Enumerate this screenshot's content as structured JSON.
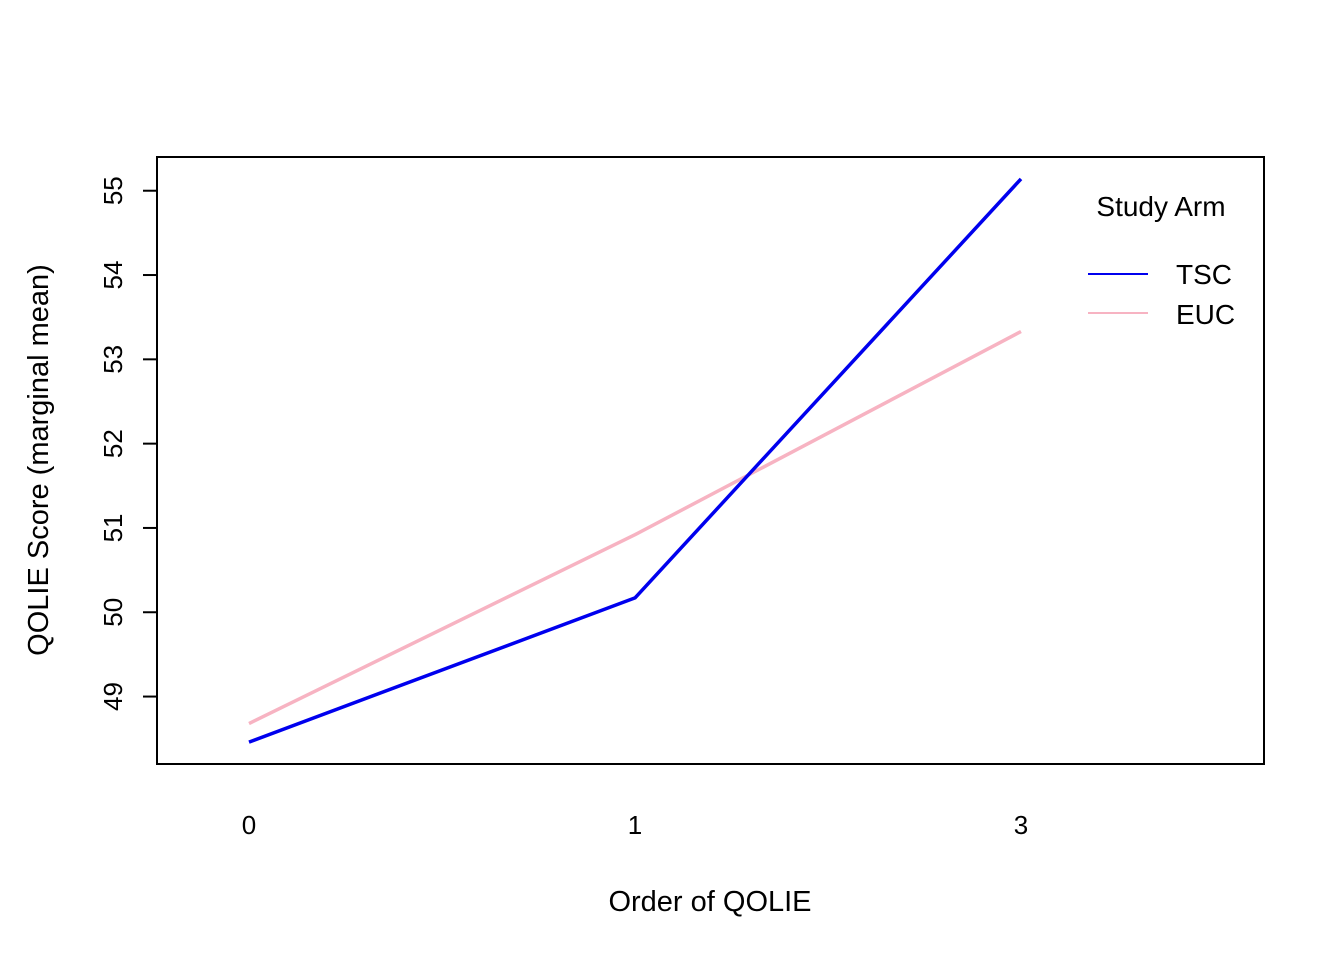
{
  "chart_data": {
    "type": "line",
    "title": "",
    "xlabel": "Order of QOLIE",
    "ylabel": "QOLIE Score (marginal mean)",
    "categories": [
      "0",
      "1",
      "3"
    ],
    "ylim": [
      48.2,
      55.4
    ],
    "yticks": [
      "49",
      "50",
      "51",
      "52",
      "53",
      "54",
      "55"
    ],
    "grid": false,
    "legend": {
      "title": "Study Arm",
      "placement": "top-right"
    },
    "series": [
      {
        "name": "TSC",
        "color": "#0000ee",
        "values": [
          48.46,
          50.17,
          55.14
        ]
      },
      {
        "name": "EUC",
        "color": "#f7b3c2",
        "values": [
          48.68,
          50.92,
          53.33
        ]
      }
    ]
  }
}
